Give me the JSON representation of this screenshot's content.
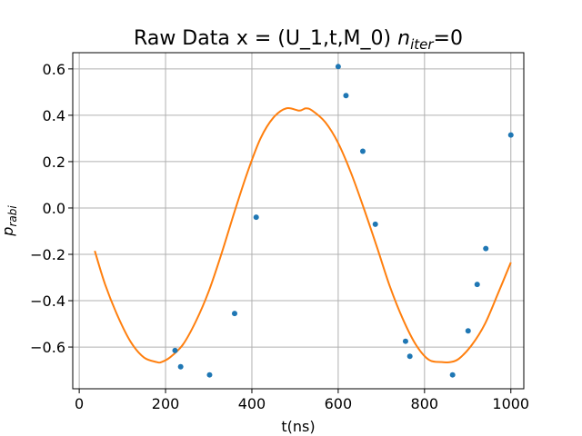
{
  "chart_data": {
    "type": "scatter",
    "title": {
      "main": "Raw Data x = (U_1,t,M_0) ",
      "math_base": "n",
      "math_sub": "iter",
      "math_tail": "=0"
    },
    "xlabel": "t(ns)",
    "ylabel": {
      "base": "p",
      "sub": "rabi"
    },
    "xlim": [
      -15,
      1030
    ],
    "ylim": [
      -0.78,
      0.67
    ],
    "xticks": [
      0,
      200,
      400,
      600,
      800,
      1000
    ],
    "xtick_labels": [
      "0",
      "200",
      "400",
      "600",
      "800",
      "1000"
    ],
    "yticks": [
      -0.6,
      -0.4,
      -0.2,
      0.0,
      0.2,
      0.4,
      0.6
    ],
    "ytick_labels": [
      "−0.6",
      "−0.4",
      "−0.2",
      "0.0",
      "0.2",
      "0.4",
      "0.6"
    ],
    "grid": true,
    "colors": {
      "points": "#1f77b4",
      "fit": "#ff7f0e",
      "grid": "#b0b0b0",
      "axes": "#000000"
    },
    "series": [
      {
        "kind": "points",
        "x": [
          222,
          235,
          302,
          360,
          410,
          600,
          618,
          657,
          686,
          756,
          766,
          865,
          901,
          922,
          942,
          1000
        ],
        "y": [
          -0.615,
          -0.685,
          -0.72,
          -0.455,
          -0.04,
          0.61,
          0.485,
          0.245,
          -0.07,
          -0.575,
          -0.64,
          -0.72,
          -0.53,
          -0.33,
          -0.175,
          0.315
        ]
      },
      {
        "kind": "fit",
        "x": [
          36,
          60,
          90,
          120,
          150,
          180,
          190,
          210,
          240,
          270,
          300,
          330,
          360,
          390,
          420,
          450,
          480,
          510,
          525,
          540,
          570,
          600,
          630,
          660,
          690,
          720,
          750,
          780,
          810,
          840,
          860,
          880,
          910,
          940,
          970,
          1000
        ],
        "y": [
          -0.185,
          -0.33,
          -0.47,
          -0.58,
          -0.645,
          -0.665,
          -0.665,
          -0.645,
          -0.59,
          -0.49,
          -0.36,
          -0.195,
          -0.015,
          0.155,
          0.3,
          0.39,
          0.43,
          0.42,
          0.43,
          0.42,
          0.37,
          0.28,
          0.15,
          -0.005,
          -0.17,
          -0.34,
          -0.48,
          -0.59,
          -0.655,
          -0.665,
          -0.665,
          -0.65,
          -0.59,
          -0.5,
          -0.37,
          -0.235
        ]
      }
    ]
  }
}
